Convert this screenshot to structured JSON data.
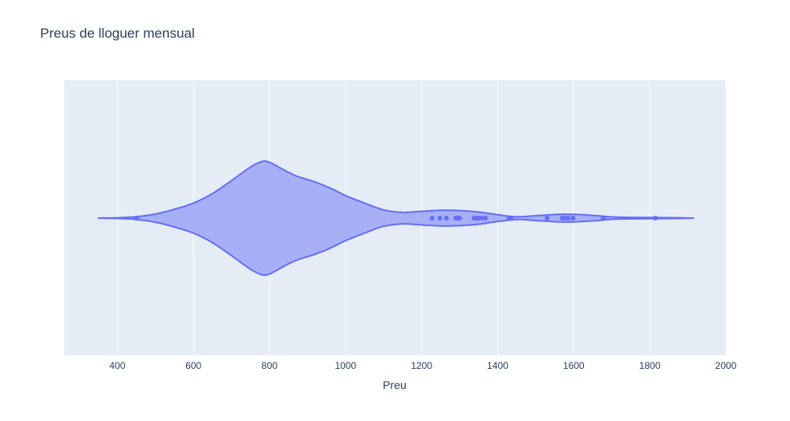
{
  "chart_data": {
    "type": "violin",
    "title": "Preus de lloguer mensual",
    "xlabel": "Preu",
    "ylabel": "",
    "orientation": "horizontal",
    "xlim": [
      260,
      2000
    ],
    "x_ticks": [
      400,
      600,
      800,
      1000,
      1200,
      1400,
      1600,
      1800,
      2000
    ],
    "grid": true,
    "colors": {
      "plot_bg": "#e5ecf6",
      "grid": "#ffffff",
      "violin_fill": "#a3acf7",
      "violin_line": "#636efa",
      "text": "#2a3f5f"
    },
    "density_profile": [
      [
        350,
        0.0
      ],
      [
        400,
        0.005
      ],
      [
        450,
        0.02
      ],
      [
        500,
        0.06
      ],
      [
        550,
        0.13
      ],
      [
        600,
        0.22
      ],
      [
        650,
        0.36
      ],
      [
        700,
        0.55
      ],
      [
        750,
        0.75
      ],
      [
        780,
        0.83
      ],
      [
        800,
        0.82
      ],
      [
        830,
        0.73
      ],
      [
        870,
        0.62
      ],
      [
        920,
        0.53
      ],
      [
        960,
        0.44
      ],
      [
        1000,
        0.33
      ],
      [
        1050,
        0.22
      ],
      [
        1100,
        0.12
      ],
      [
        1150,
        0.085
      ],
      [
        1200,
        0.1
      ],
      [
        1250,
        0.115
      ],
      [
        1300,
        0.11
      ],
      [
        1350,
        0.09
      ],
      [
        1400,
        0.05
      ],
      [
        1450,
        0.02
      ],
      [
        1500,
        0.035
      ],
      [
        1560,
        0.055
      ],
      [
        1600,
        0.055
      ],
      [
        1650,
        0.04
      ],
      [
        1700,
        0.018
      ],
      [
        1750,
        0.01
      ],
      [
        1800,
        0.008
      ],
      [
        1850,
        0.006
      ],
      [
        1915,
        0.0
      ]
    ],
    "outlier_points": [
      450,
      1228,
      1248,
      1265,
      1290,
      1295,
      1300,
      1338,
      1345,
      1350,
      1358,
      1368,
      1430,
      1435,
      1530,
      1570,
      1578,
      1585,
      1598,
      1678,
      1815
    ]
  }
}
